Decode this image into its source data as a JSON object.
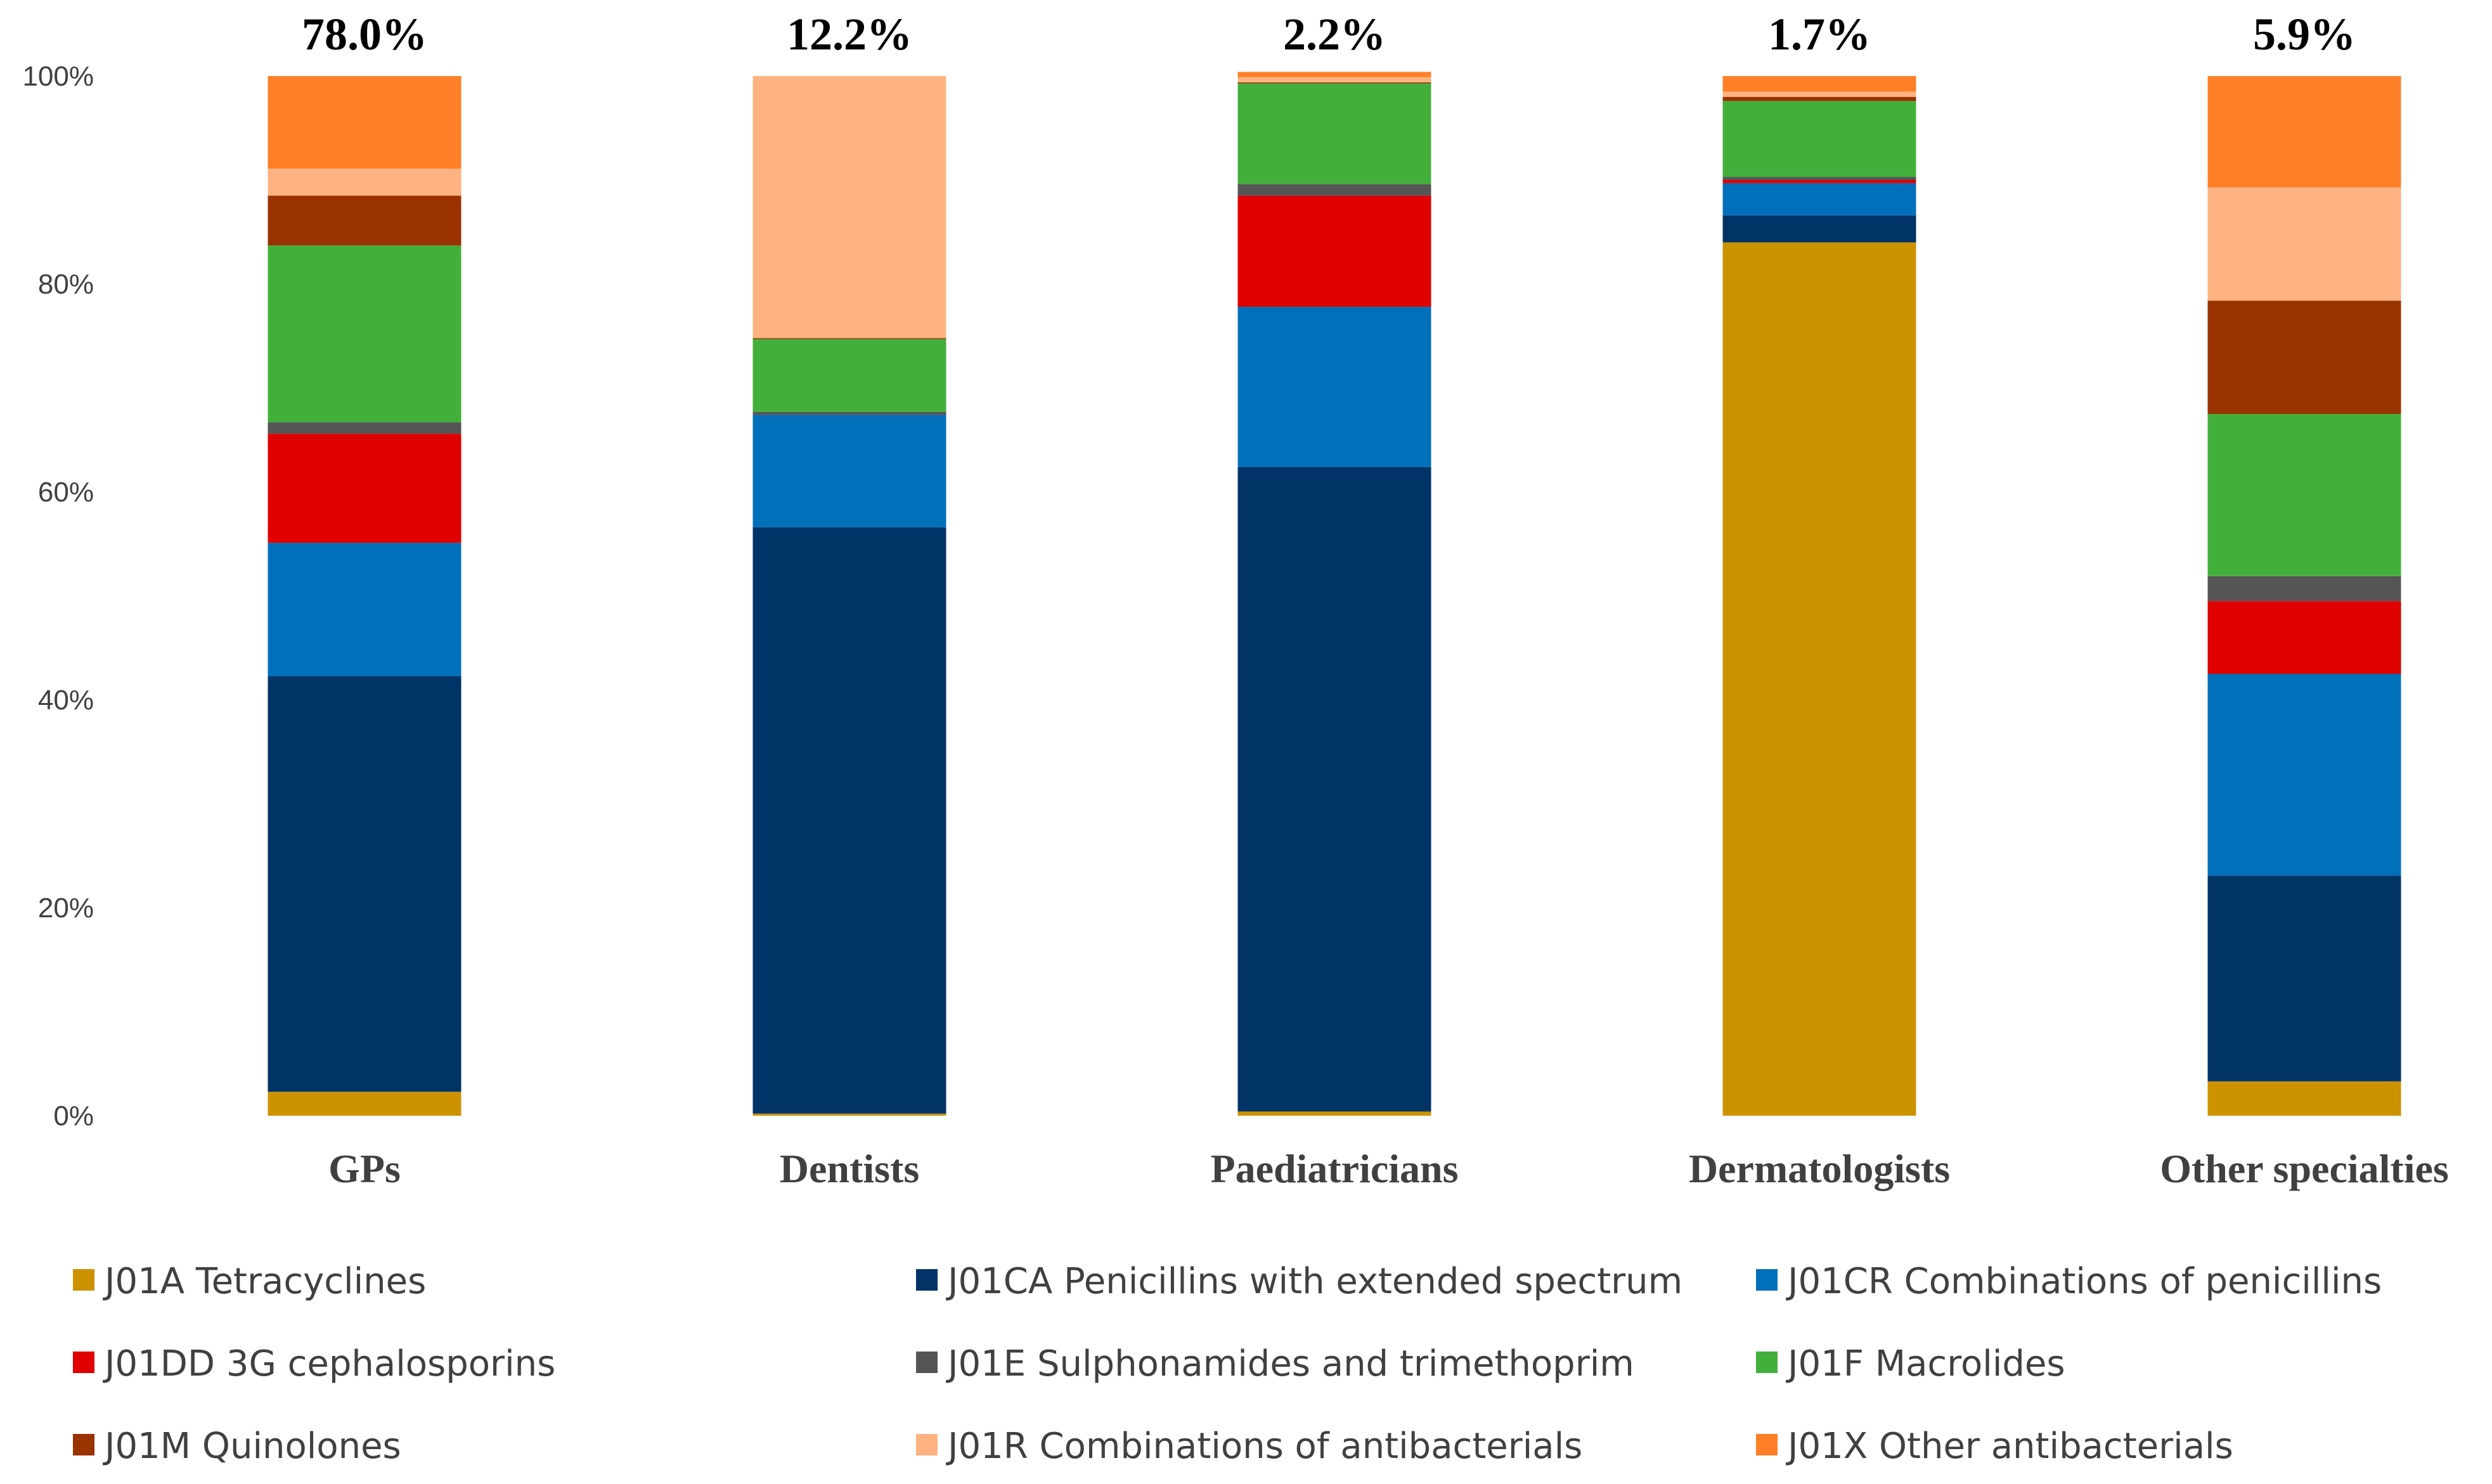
{
  "chart_data": {
    "type": "bar",
    "stacked": true,
    "normalized": true,
    "categories": [
      "GPs",
      "Dentists",
      "Paediatricians",
      "Dermatologists",
      "Other specialties"
    ],
    "top_labels": [
      "78.0%",
      "12.2%",
      "2.2%",
      "1.7%",
      "5.9%"
    ],
    "y_ticks": [
      "0%",
      "20%",
      "40%",
      "60%",
      "80%",
      "100%"
    ],
    "ylim": [
      0,
      100
    ],
    "grid": false,
    "legend_position": "bottom",
    "series": [
      {
        "name": "J01A Tetracyclines",
        "color": "#CC9200",
        "values": [
          2.3,
          0.2,
          0.4,
          84.0,
          3.3
        ]
      },
      {
        "name": "J01CA Penicillins with extended spectrum",
        "color": "#003366",
        "values": [
          40.0,
          56.4,
          62.0,
          2.6,
          19.8
        ]
      },
      {
        "name": "J01CR Combinations of penicillins",
        "color": "#0070BB",
        "values": [
          12.8,
          10.8,
          15.4,
          3.1,
          19.4
        ]
      },
      {
        "name": "J01DD 3G cephalosporins",
        "color": "#E00000",
        "values": [
          10.5,
          0.0,
          10.7,
          0.3,
          7.0
        ]
      },
      {
        "name": "J01E Sulphonamides and trimethoprim",
        "color": "#555555",
        "values": [
          1.1,
          0.3,
          1.1,
          0.3,
          2.4
        ]
      },
      {
        "name": "J01F Macrolides",
        "color": "#43AF3B",
        "values": [
          17.0,
          7.0,
          9.7,
          7.3,
          15.6
        ]
      },
      {
        "name": "J01M Quinolones",
        "color": "#993300",
        "values": [
          4.8,
          0.1,
          0.1,
          0.4,
          10.9
        ]
      },
      {
        "name": "J01R Combinations of antibacterials",
        "color": "#FFB281",
        "values": [
          2.6,
          25.2,
          0.5,
          0.5,
          10.9
        ]
      },
      {
        "name": "J01X Other antibacterials",
        "color": "#FF7F27",
        "values": [
          8.9,
          0.0,
          0.5,
          1.5,
          10.7
        ]
      }
    ]
  }
}
